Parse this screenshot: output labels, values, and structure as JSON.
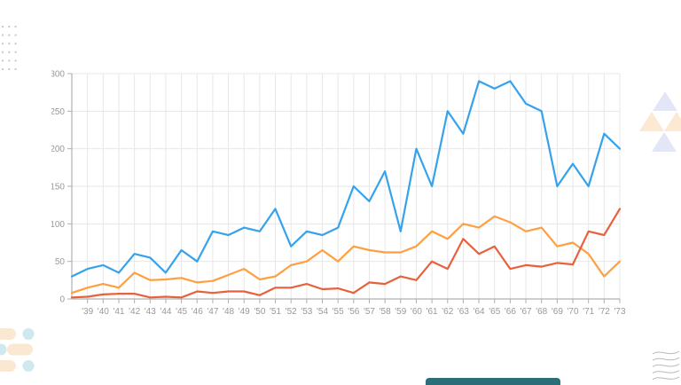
{
  "chart_data": {
    "type": "line",
    "title": "",
    "xlabel": "",
    "ylabel": "",
    "x_labels": [
      "",
      "'39",
      "'40",
      "'41",
      "'42",
      "'43",
      "'44",
      "'45",
      "'46",
      "'47",
      "'48",
      "'49",
      "'50",
      "'51",
      "'52",
      "'53",
      "'54",
      "'55",
      "'56",
      "'57",
      "'58",
      "'59",
      "'60",
      "'61",
      "'62",
      "'63",
      "'64",
      "'65",
      "'66",
      "'67",
      "'68",
      "'69",
      "'70",
      "'71",
      "'72",
      "'73"
    ],
    "y_ticks": [
      0,
      50,
      100,
      150,
      200,
      250,
      300
    ],
    "ylim": [
      0,
      300
    ],
    "grid": true,
    "legend_position": "none",
    "series": [
      {
        "name": "blue-series",
        "color": "#36a2eb",
        "values": [
          30,
          40,
          45,
          35,
          60,
          55,
          35,
          65,
          50,
          90,
          85,
          95,
          90,
          120,
          70,
          90,
          85,
          95,
          150,
          130,
          170,
          90,
          200,
          150,
          250,
          220,
          290,
          280,
          290,
          260,
          250,
          150,
          180,
          150,
          220,
          200
        ]
      },
      {
        "name": "orange-series",
        "color": "#ff9f40",
        "values": [
          8,
          15,
          20,
          15,
          35,
          25,
          26,
          28,
          22,
          24,
          32,
          40,
          26,
          30,
          45,
          50,
          65,
          50,
          70,
          65,
          62,
          62,
          70,
          90,
          80,
          100,
          95,
          110,
          102,
          90,
          95,
          70,
          75,
          60,
          30,
          50
        ]
      },
      {
        "name": "red-orange-series",
        "color": "#e8613d",
        "values": [
          2,
          3,
          6,
          7,
          7,
          2,
          3,
          2,
          10,
          8,
          10,
          10,
          5,
          15,
          15,
          20,
          13,
          14,
          8,
          22,
          20,
          30,
          25,
          50,
          40,
          80,
          60,
          70,
          40,
          45,
          43,
          48,
          46,
          90,
          85,
          120
        ]
      }
    ],
    "axis_color": "#b0b0b0",
    "grid_color": "#e7e7e7",
    "tick_label_color": "#999999"
  },
  "decorations": {
    "dot_grid_color": "#c9c9c9",
    "triangle_lavender": "#e3e6f6",
    "triangle_peach": "#fbe9d4",
    "pill_peach": "#fbe8d2",
    "circle_teal": "#cfe9ee",
    "wave_color": "#b9b9b9",
    "accent_bar_color": "#2a6f77"
  }
}
